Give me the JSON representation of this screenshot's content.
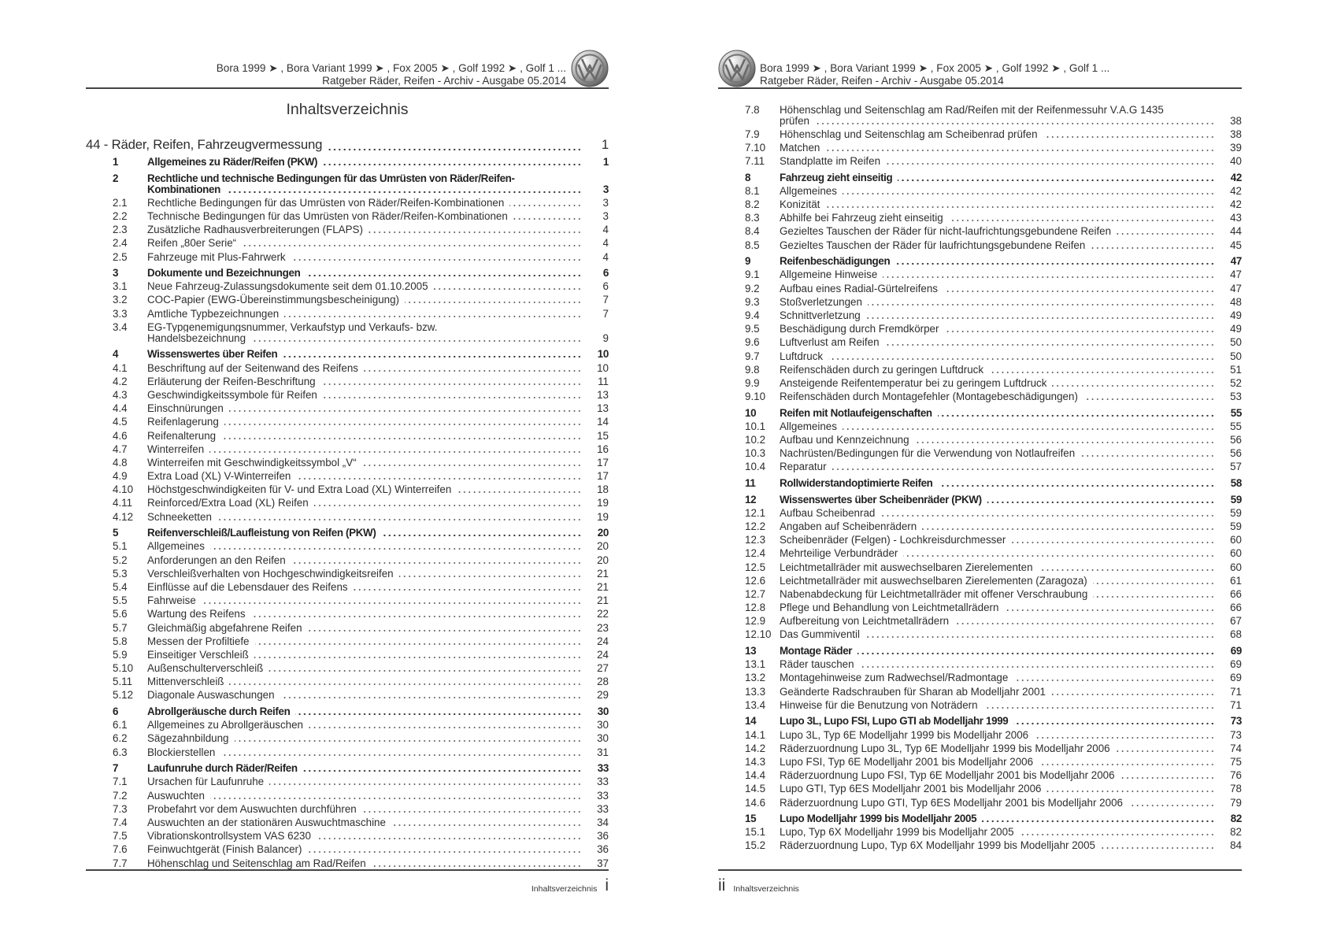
{
  "header": {
    "models": "Bora 1999 ➤ , Bora Variant 1999 ➤ , Fox 2005 ➤ , Golf 1992 ➤ , Golf 1 ...",
    "subtitle": "Ratgeber Räder, Reifen - Archiv - Ausgabe 05.2014",
    "logo": "vw-logo"
  },
  "left_page": {
    "title": "Inhaltsverzeichnis",
    "footer_label": "Inhaltsverzeichnis",
    "footer_page": "i",
    "entries": [
      {
        "n": "",
        "t": "44 - Räder, Reifen, Fahrzeugvermessung",
        "p": "1",
        "type": "chapter"
      },
      {
        "n": "1",
        "t": "Allgemeines zu Räder/Reifen (PKW)",
        "p": "1",
        "type": "section"
      },
      {
        "n": "2",
        "t": "Rechtliche und technische Bedingungen für das Umrüsten von Räder/Reifen-Kombinationen",
        "p": "3",
        "type": "section"
      },
      {
        "n": "2.1",
        "t": "Rechtliche Bedingungen für das Umrüsten von Räder/Reifen-Kombinationen",
        "p": "3"
      },
      {
        "n": "2.2",
        "t": "Technische Bedingungen für das Umrüsten von Räder/Reifen-Kombinationen",
        "p": "3"
      },
      {
        "n": "2.3",
        "t": "Zusätzliche Radhausverbreiterungen (FLAPS)",
        "p": "4"
      },
      {
        "n": "2.4",
        "t": "Reifen „80er Serie“",
        "p": "4"
      },
      {
        "n": "2.5",
        "t": "Fahrzeuge mit Plus-Fahrwerk",
        "p": "4"
      },
      {
        "n": "3",
        "t": "Dokumente und Bezeichnungen",
        "p": "6",
        "type": "section"
      },
      {
        "n": "3.1",
        "t": "Neue Fahrzeug-Zulassungsdokumente seit dem 01.10.2005",
        "p": "6"
      },
      {
        "n": "3.2",
        "t": "COC-Papier (EWG-Übereinstimmungsbescheinigung)",
        "p": "7"
      },
      {
        "n": "3.3",
        "t": "Amtliche Typbezeichnungen",
        "p": "7"
      },
      {
        "n": "3.4",
        "t": "EG-Typgenemigungsnummer, Verkaufstyp und Verkaufs- bzw. Handelsbezeichnung",
        "p": "9"
      },
      {
        "n": "4",
        "t": "Wissenswertes über Reifen",
        "p": "10",
        "type": "section"
      },
      {
        "n": "4.1",
        "t": "Beschriftung auf der Seitenwand des Reifens",
        "p": "10"
      },
      {
        "n": "4.2",
        "t": "Erläuterung der Reifen-Beschriftung",
        "p": "11"
      },
      {
        "n": "4.3",
        "t": "Geschwindigkeitssymbole für Reifen",
        "p": "13"
      },
      {
        "n": "4.4",
        "t": "Einschnürungen",
        "p": "13"
      },
      {
        "n": "4.5",
        "t": "Reifenlagerung",
        "p": "14"
      },
      {
        "n": "4.6",
        "t": "Reifenalterung",
        "p": "15"
      },
      {
        "n": "4.7",
        "t": "Winterreifen",
        "p": "16"
      },
      {
        "n": "4.8",
        "t": "Winterreifen mit Geschwindigkeitssymbol „V“",
        "p": "17"
      },
      {
        "n": "4.9",
        "t": "Extra Load (XL) V-Winterreifen",
        "p": "17"
      },
      {
        "n": "4.10",
        "t": "Höchstgeschwindigkeiten für V- und Extra Load (XL) Winterreifen",
        "p": "18"
      },
      {
        "n": "4.11",
        "t": "Reinforced/Extra Load (XL) Reifen",
        "p": "19"
      },
      {
        "n": "4.12",
        "t": "Schneeketten",
        "p": "19"
      },
      {
        "n": "5",
        "t": "Reifenverschleiß/Laufleistung von Reifen (PKW)",
        "p": "20",
        "type": "section"
      },
      {
        "n": "5.1",
        "t": "Allgemeines",
        "p": "20"
      },
      {
        "n": "5.2",
        "t": "Anforderungen an den Reifen",
        "p": "20"
      },
      {
        "n": "5.3",
        "t": "Verschleißverhalten von Hochgeschwindigkeitsreifen",
        "p": "21"
      },
      {
        "n": "5.4",
        "t": "Einflüsse auf die Lebensdauer des Reifens",
        "p": "21"
      },
      {
        "n": "5.5",
        "t": "Fahrweise",
        "p": "21"
      },
      {
        "n": "5.6",
        "t": "Wartung des Reifens",
        "p": "22"
      },
      {
        "n": "5.7",
        "t": "Gleichmäßig abgefahrene Reifen",
        "p": "23"
      },
      {
        "n": "5.8",
        "t": "Messen der Profiltiefe",
        "p": "24"
      },
      {
        "n": "5.9",
        "t": "Einseitiger Verschleiß",
        "p": "24"
      },
      {
        "n": "5.10",
        "t": "Außenschulterverschleiß",
        "p": "27"
      },
      {
        "n": "5.11",
        "t": "Mittenverschleiß",
        "p": "28"
      },
      {
        "n": "5.12",
        "t": "Diagonale Auswaschungen",
        "p": "29"
      },
      {
        "n": "6",
        "t": "Abrollgeräusche durch Reifen",
        "p": "30",
        "type": "section"
      },
      {
        "n": "6.1",
        "t": "Allgemeines zu Abrollgeräuschen",
        "p": "30"
      },
      {
        "n": "6.2",
        "t": "Sägezahnbildung",
        "p": "30"
      },
      {
        "n": "6.3",
        "t": "Blockierstellen",
        "p": "31"
      },
      {
        "n": "7",
        "t": "Laufunruhe durch Räder/Reifen",
        "p": "33",
        "type": "section"
      },
      {
        "n": "7.1",
        "t": "Ursachen für Laufunruhe",
        "p": "33"
      },
      {
        "n": "7.2",
        "t": "Auswuchten",
        "p": "33"
      },
      {
        "n": "7.3",
        "t": "Probefahrt vor dem Auswuchten durchführen",
        "p": "33"
      },
      {
        "n": "7.4",
        "t": "Auswuchten an der stationären Auswuchtmaschine",
        "p": "34"
      },
      {
        "n": "7.5",
        "t": "Vibrationskontrollsystem VAS 6230",
        "p": "36"
      },
      {
        "n": "7.6",
        "t": "Feinwuchtgerät (Finish Balancer)",
        "p": "36"
      },
      {
        "n": "7.7",
        "t": "Höhenschlag und Seitenschlag am Rad/Reifen",
        "p": "37"
      }
    ]
  },
  "right_page": {
    "footer_label": "Inhaltsverzeichnis",
    "footer_page": "ii",
    "entries": [
      {
        "n": "7.8",
        "t": "Höhenschlag und Seitenschlag am Rad/Reifen mit der Reifenmessuhr V.A.G 1435 prüfen",
        "p": "38"
      },
      {
        "n": "7.9",
        "t": "Höhenschlag und Seitenschlag am Scheibenrad prüfen",
        "p": "38"
      },
      {
        "n": "7.10",
        "t": "Matchen",
        "p": "39"
      },
      {
        "n": "7.11",
        "t": "Standplatte im Reifen",
        "p": "40"
      },
      {
        "n": "8",
        "t": "Fahrzeug zieht einseitig",
        "p": "42",
        "type": "section"
      },
      {
        "n": "8.1",
        "t": "Allgemeines",
        "p": "42"
      },
      {
        "n": "8.2",
        "t": "Konizität",
        "p": "42"
      },
      {
        "n": "8.3",
        "t": "Abhilfe bei Fahrzeug zieht einseitig",
        "p": "43"
      },
      {
        "n": "8.4",
        "t": "Gezieltes Tauschen der Räder für nicht-laufrichtungsgebundene Reifen",
        "p": "44"
      },
      {
        "n": "8.5",
        "t": "Gezieltes Tauschen der Räder für laufrichtungsgebundene Reifen",
        "p": "45"
      },
      {
        "n": "9",
        "t": "Reifenbeschädigungen",
        "p": "47",
        "type": "section"
      },
      {
        "n": "9.1",
        "t": "Allgemeine Hinweise",
        "p": "47"
      },
      {
        "n": "9.2",
        "t": "Aufbau eines Radial-Gürtelreifens",
        "p": "47"
      },
      {
        "n": "9.3",
        "t": "Stoßverletzungen",
        "p": "48"
      },
      {
        "n": "9.4",
        "t": "Schnittverletzung",
        "p": "49"
      },
      {
        "n": "9.5",
        "t": "Beschädigung durch Fremdkörper",
        "p": "49"
      },
      {
        "n": "9.6",
        "t": "Luftverlust am Reifen",
        "p": "50"
      },
      {
        "n": "9.7",
        "t": "Luftdruck",
        "p": "50"
      },
      {
        "n": "9.8",
        "t": "Reifenschäden durch zu geringen Luftdruck",
        "p": "51"
      },
      {
        "n": "9.9",
        "t": "Ansteigende Reifentemperatur bei zu geringem Luftdruck",
        "p": "52"
      },
      {
        "n": "9.10",
        "t": "Reifenschäden durch Montagefehler (Montagebeschädigungen)",
        "p": "53"
      },
      {
        "n": "10",
        "t": "Reifen mit Notlaufeigenschaften",
        "p": "55",
        "type": "section"
      },
      {
        "n": "10.1",
        "t": "Allgemeines",
        "p": "55"
      },
      {
        "n": "10.2",
        "t": "Aufbau und Kennzeichnung",
        "p": "56"
      },
      {
        "n": "10.3",
        "t": "Nachrüsten/Bedingungen für die Verwendung von Notlaufreifen",
        "p": "56"
      },
      {
        "n": "10.4",
        "t": "Reparatur",
        "p": "57"
      },
      {
        "n": "11",
        "t": "Rollwiderstandoptimierte Reifen",
        "p": "58",
        "type": "section"
      },
      {
        "n": "12",
        "t": "Wissenswertes über Scheibenräder (PKW)",
        "p": "59",
        "type": "section"
      },
      {
        "n": "12.1",
        "t": "Aufbau Scheibenrad",
        "p": "59"
      },
      {
        "n": "12.2",
        "t": "Angaben auf Scheibenrädern",
        "p": "59"
      },
      {
        "n": "12.3",
        "t": "Scheibenräder (Felgen) - Lochkreisdurchmesser",
        "p": "60"
      },
      {
        "n": "12.4",
        "t": "Mehrteilige Verbundräder",
        "p": "60"
      },
      {
        "n": "12.5",
        "t": "Leichtmetallräder mit auswechselbaren Zierelementen",
        "p": "60"
      },
      {
        "n": "12.6",
        "t": "Leichtmetallräder mit auswechselbaren Zierelementen (Zaragoza)",
        "p": "61"
      },
      {
        "n": "12.7",
        "t": "Nabenabdeckung für Leichtmetallräder mit offener Verschraubung",
        "p": "66"
      },
      {
        "n": "12.8",
        "t": "Pflege und Behandlung von Leichtmetallrädern",
        "p": "66"
      },
      {
        "n": "12.9",
        "t": "Aufbereitung von Leichtmetallrädern",
        "p": "67"
      },
      {
        "n": "12.10",
        "t": "Das Gummiventil",
        "p": "68"
      },
      {
        "n": "13",
        "t": "Montage Räder",
        "p": "69",
        "type": "section"
      },
      {
        "n": "13.1",
        "t": "Räder tauschen",
        "p": "69"
      },
      {
        "n": "13.2",
        "t": "Montagehinweise zum Radwechsel/Radmontage",
        "p": "69"
      },
      {
        "n": "13.3",
        "t": "Geänderte Radschrauben für Sharan ab Modelljahr 2001",
        "p": "71"
      },
      {
        "n": "13.4",
        "t": "Hinweise für die Benutzung von Noträdern",
        "p": "71"
      },
      {
        "n": "14",
        "t": "Lupo 3L, Lupo FSI, Lupo GTI ab Modelljahr 1999",
        "p": "73",
        "type": "section"
      },
      {
        "n": "14.1",
        "t": "Lupo 3L, Typ 6E Modelljahr 1999 bis Modelljahr 2006",
        "p": "73"
      },
      {
        "n": "14.2",
        "t": "Räderzuordnung Lupo 3L, Typ 6E Modelljahr 1999 bis Modelljahr 2006",
        "p": "74"
      },
      {
        "n": "14.3",
        "t": "Lupo FSI, Typ 6E Modelljahr 2001 bis Modelljahr 2006",
        "p": "75"
      },
      {
        "n": "14.4",
        "t": "Räderzuordnung Lupo FSI, Typ 6E Modelljahr 2001 bis Modelljahr 2006",
        "p": "76"
      },
      {
        "n": "14.5",
        "t": "Lupo GTI, Typ 6ES Modelljahr 2001 bis Modelljahr 2006",
        "p": "78"
      },
      {
        "n": "14.6",
        "t": "Räderzuordnung Lupo GTI, Typ 6ES Modelljahr 2001 bis Modelljahr 2006",
        "p": "79"
      },
      {
        "n": "15",
        "t": "Lupo Modelljahr 1999 bis Modelljahr 2005",
        "p": "82",
        "type": "section"
      },
      {
        "n": "15.1",
        "t": "Lupo, Typ 6X Modelljahr 1999 bis Modelljahr 2005",
        "p": "82"
      },
      {
        "n": "15.2",
        "t": "Räderzuordnung Lupo, Typ 6X Modelljahr 1999 bis Modelljahr 2005",
        "p": "84"
      }
    ]
  }
}
